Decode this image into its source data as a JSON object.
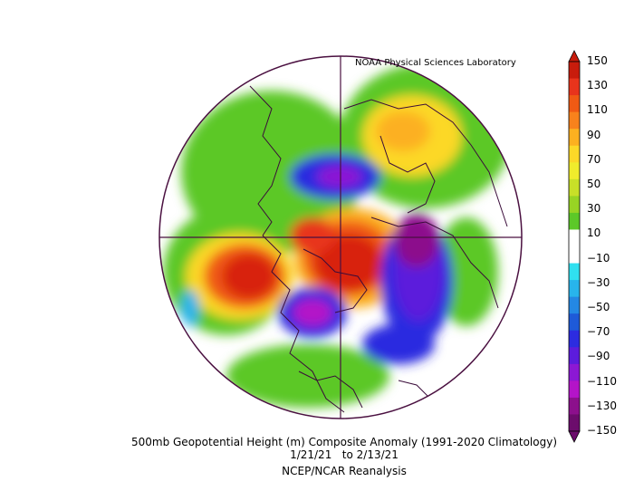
{
  "credit": "NOAA Physical Sciences Laboratory",
  "title": {
    "line1": "500mb Geopotential Height (m) Composite Anomaly (1991-2020 Climatology)",
    "date_start": "1/21/21",
    "date_sep": "to",
    "date_end": "2/13/21",
    "source": "NCEP/NCAR Reanalysis"
  },
  "colorbar": {
    "labels": [
      "150",
      "130",
      "110",
      "90",
      "70",
      "50",
      "30",
      "10",
      "-10",
      "-30",
      "-50",
      "-70",
      "-90",
      "-110",
      "-130",
      "-150"
    ],
    "colors": [
      "#c81c0c",
      "#e8341c",
      "#f05a14",
      "#f8821c",
      "#fcb020",
      "#fcd828",
      "#f0ec2c",
      "#c8e028",
      "#98d424",
      "#5cc828",
      "#ffffff",
      "#ffffff",
      "#30e0f0",
      "#28b4ec",
      "#2488e4",
      "#1e5ad8",
      "#2c2ce0",
      "#5c1cdc",
      "#8c18d4",
      "#b414c8",
      "#8c108c",
      "#6c0c6c"
    ]
  }
}
